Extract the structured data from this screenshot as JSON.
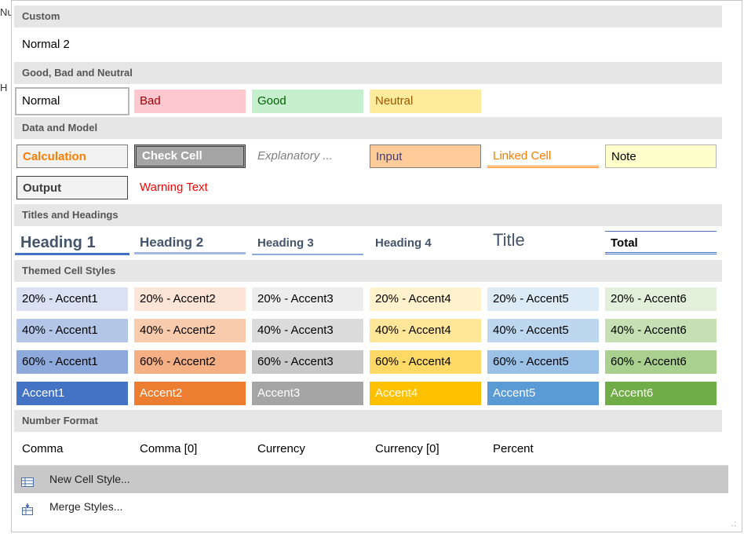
{
  "edge_fragments": [
    "Nu",
    "H"
  ],
  "sections": {
    "custom": "Custom",
    "good_bad_neutral": "Good, Bad and Neutral",
    "data_model": "Data and Model",
    "titles": "Titles and Headings",
    "themed": "Themed Cell Styles",
    "number": "Number Format"
  },
  "custom": {
    "normal2": "Normal 2"
  },
  "good_bad": {
    "normal": "Normal",
    "bad": "Bad",
    "good": "Good",
    "neutral": "Neutral"
  },
  "data_model": {
    "calculation": "Calculation",
    "check_cell": "Check Cell",
    "explanatory": "Explanatory ...",
    "input": "Input",
    "linked_cell": "Linked Cell",
    "note": "Note",
    "output": "Output",
    "warning": "Warning Text"
  },
  "titles": {
    "h1": "Heading 1",
    "h2": "Heading 2",
    "h3": "Heading 3",
    "h4": "Heading 4",
    "title": "Title",
    "total": "Total"
  },
  "themed": {
    "r20": [
      "20% - Accent1",
      "20% - Accent2",
      "20% - Accent3",
      "20% - Accent4",
      "20% - Accent5",
      "20% - Accent6"
    ],
    "r40": [
      "40% - Accent1",
      "40% - Accent2",
      "40% - Accent3",
      "40% - Accent4",
      "40% - Accent5",
      "40% - Accent6"
    ],
    "r60": [
      "60% - Accent1",
      "60% - Accent2",
      "60% - Accent3",
      "60% - Accent4",
      "60% - Accent5",
      "60% - Accent6"
    ],
    "r100": [
      "Accent1",
      "Accent2",
      "Accent3",
      "Accent4",
      "Accent5",
      "Accent6"
    ]
  },
  "number": {
    "comma": "Comma",
    "comma0": "Comma [0]",
    "currency": "Currency",
    "currency0": "Currency [0]",
    "percent": "Percent"
  },
  "menu": {
    "new_style": "New Cell Style...",
    "merge_styles": "Merge Styles..."
  },
  "colors": {
    "accent1": "#4472c4",
    "accent2": "#ed7d31",
    "accent3": "#a5a5a5",
    "accent4": "#ffc000",
    "accent5": "#5b9bd5",
    "accent6": "#70ad47",
    "bad_fill": "#ffc7ce",
    "bad_text": "#9c0006",
    "good_fill": "#c6efce",
    "good_text": "#006100",
    "neutral_fill": "#ffeb9c",
    "neutral_text": "#9c5700"
  }
}
